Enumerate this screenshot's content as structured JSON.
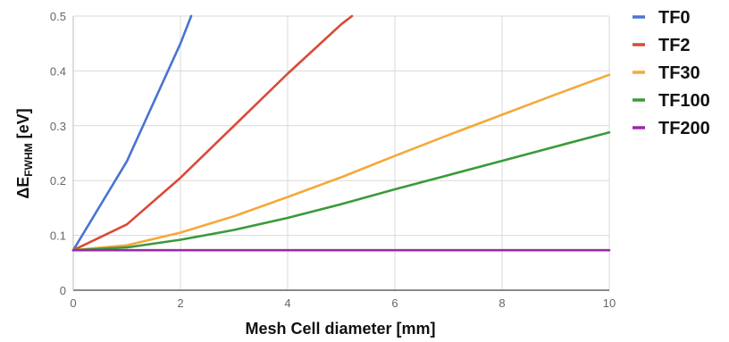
{
  "chart_data": {
    "type": "line",
    "xlabel": "Mesh Cell diameter [mm]",
    "ylabel_main": "ΔE",
    "ylabel_sub": "FWHM",
    "ylabel_unit": " [eV]",
    "xlim": [
      0,
      10
    ],
    "ylim": [
      0,
      0.5
    ],
    "x_ticks": [
      "0",
      "2",
      "4",
      "6",
      "8",
      "10"
    ],
    "y_ticks": [
      "0",
      "0.1",
      "0.2",
      "0.3",
      "0.4",
      "0.5"
    ],
    "grid": true,
    "legend_position": "right",
    "series": [
      {
        "name": "TF0",
        "color": "#4a74cf",
        "x": [
          0,
          1,
          2,
          2.2
        ],
        "y": [
          0.073,
          0.235,
          0.45,
          0.5
        ]
      },
      {
        "name": "TF2",
        "color": "#d94a37",
        "x": [
          0,
          1,
          2,
          3,
          4,
          5,
          5.2
        ],
        "y": [
          0.073,
          0.12,
          0.205,
          0.3,
          0.395,
          0.485,
          0.5
        ]
      },
      {
        "name": "TF30",
        "color": "#f6a83a",
        "x": [
          0,
          1,
          2,
          3,
          4,
          5,
          6,
          7,
          8,
          9,
          10
        ],
        "y": [
          0.073,
          0.082,
          0.105,
          0.135,
          0.17,
          0.206,
          0.245,
          0.283,
          0.32,
          0.357,
          0.393
        ]
      },
      {
        "name": "TF100",
        "color": "#3a9a3a",
        "x": [
          0,
          1,
          2,
          3,
          4,
          5,
          6,
          7,
          8,
          9,
          10
        ],
        "y": [
          0.073,
          0.078,
          0.092,
          0.11,
          0.132,
          0.157,
          0.184,
          0.21,
          0.236,
          0.262,
          0.288
        ]
      },
      {
        "name": "TF200",
        "color": "#9a2aa8",
        "x": [
          0,
          10
        ],
        "y": [
          0.073,
          0.073
        ]
      }
    ]
  }
}
